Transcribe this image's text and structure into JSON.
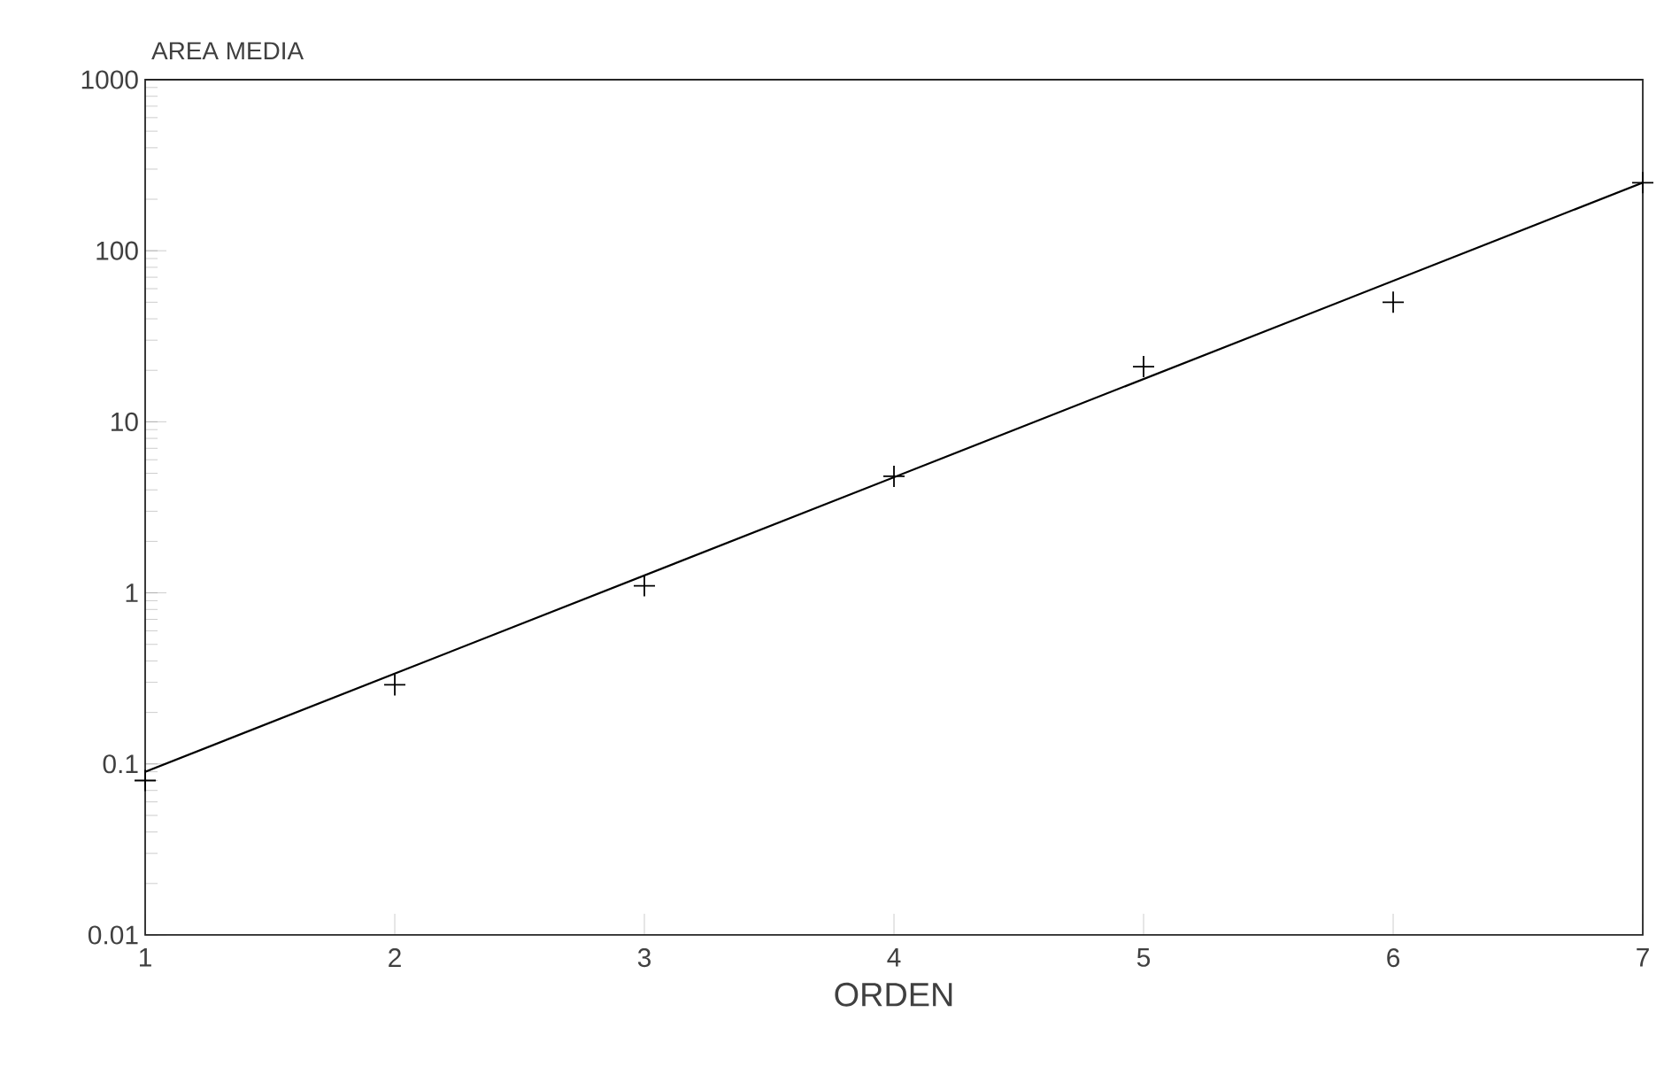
{
  "chart_data": {
    "type": "scatter",
    "ylabel": "AREA MEDIA",
    "xlabel": "ORDEN",
    "log": "y",
    "x": [
      1,
      2,
      3,
      4,
      5,
      6,
      7
    ],
    "series": [
      {
        "color": "#000000",
        "marker": "cross",
        "values": [
          0.08,
          0.29,
          1.1,
          4.8,
          21,
          50,
          250
        ]
      },
      {
        "type": "line",
        "color": "#000000",
        "marker": "none",
        "line_style": "solid",
        "x": [
          1,
          7
        ],
        "values": [
          0.09,
          250
        ]
      }
    ],
    "xlim": [
      1,
      7
    ],
    "xticks": [
      1,
      2,
      3,
      4,
      5,
      6,
      7
    ],
    "ylim": [
      0.01,
      1000
    ],
    "yticks": [
      0.01,
      0.1,
      1,
      10,
      100,
      1000
    ],
    "grid": false
  }
}
